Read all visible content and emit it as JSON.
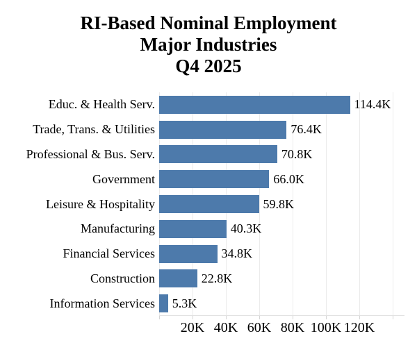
{
  "chart_data": {
    "type": "bar",
    "orientation": "horizontal",
    "title_lines": [
      "RI-Based Nominal Employment",
      "Major Industries",
      "Q4 2025"
    ],
    "categories": [
      "Educ. & Health Serv.",
      "Trade, Trans. & Utilities",
      "Professional & Bus. Serv.",
      "Government",
      "Leisure & Hospitality",
      "Manufacturing",
      "Financial Services",
      "Construction",
      "Information Services"
    ],
    "values": [
      114.4,
      76.4,
      70.8,
      66.0,
      59.8,
      40.3,
      34.8,
      22.8,
      5.3
    ],
    "unit": "K",
    "value_labels": [
      "114.4K",
      "76.4K",
      "70.8K",
      "66.0K",
      "59.8K",
      "40.3K",
      "34.8K",
      "22.8K",
      "5.3K"
    ],
    "xticks": [
      {
        "value": 20,
        "label": "20K"
      },
      {
        "value": 40,
        "label": "40K"
      },
      {
        "value": 60,
        "label": "60K"
      },
      {
        "value": 80,
        "label": "80K"
      },
      {
        "value": 100,
        "label": "100K"
      },
      {
        "value": 120,
        "label": "120K"
      }
    ],
    "grid_values": [
      0,
      20,
      40,
      60,
      80,
      100,
      120,
      140
    ],
    "xlim": [
      0,
      140
    ],
    "grid": "vertical-light",
    "legend": "none",
    "colors": {
      "bar": "#4d7aab",
      "gridline": "#ebebeb",
      "axis_line": "#e2e2e2",
      "tick": "#d5d5d5",
      "text": "#000000",
      "background": "#ffffff"
    }
  }
}
